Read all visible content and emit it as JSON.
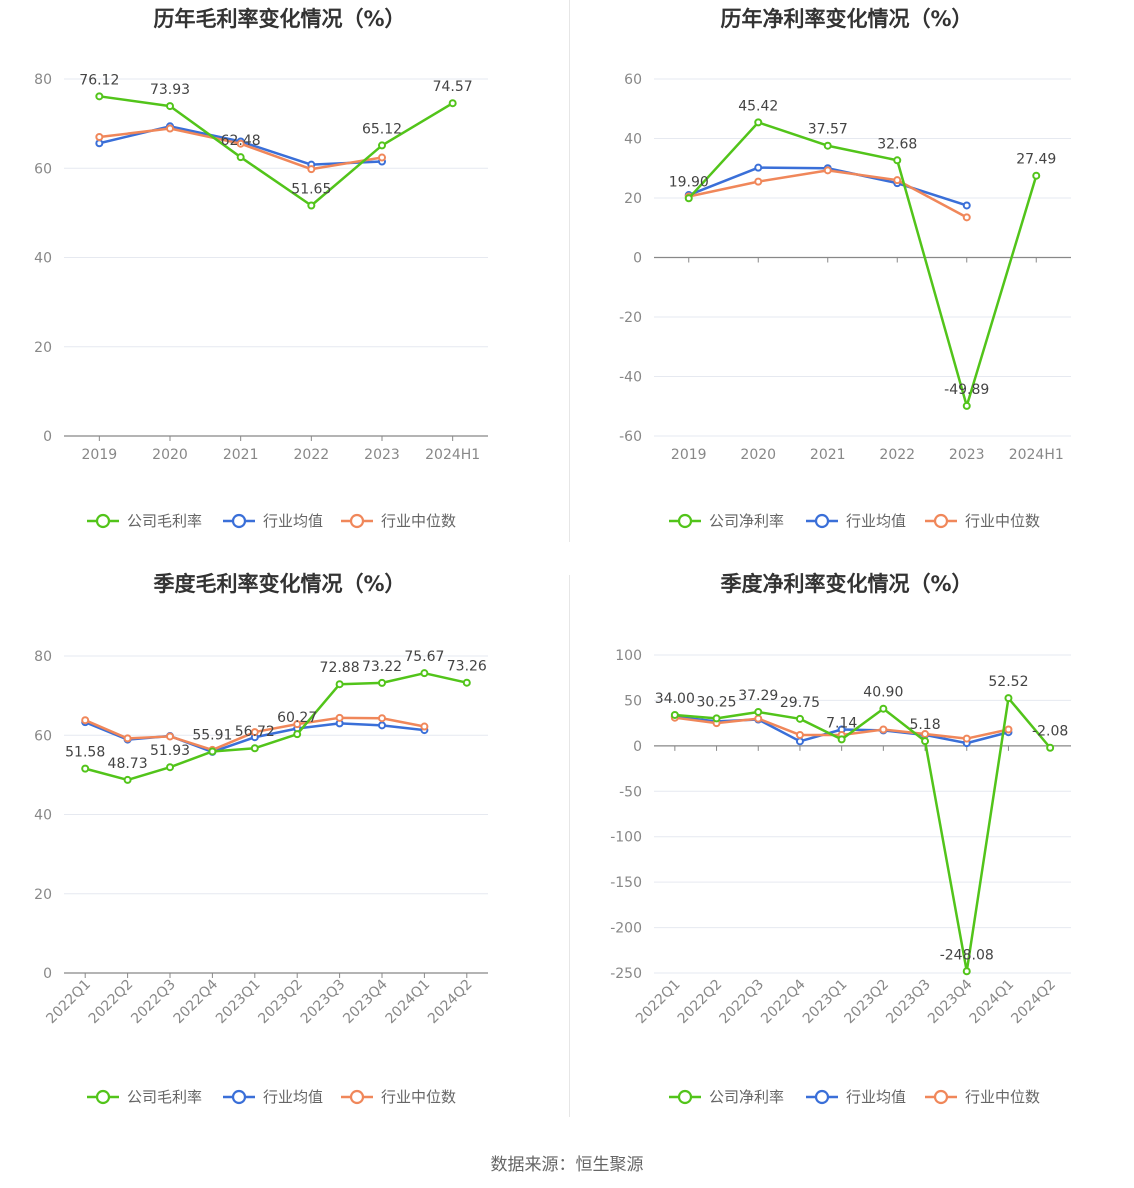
{
  "colors": {
    "company": "#52c41a",
    "avg": "#3a6fd8",
    "median": "#f0875a",
    "grid": "#e6e9f0",
    "axis": "#666666"
  },
  "source": "数据来源：恒生聚源",
  "chart_data": [
    {
      "type": "line",
      "title": "历年毛利率变化情况（%）",
      "categories": [
        "2019",
        "2020",
        "2021",
        "2022",
        "2023",
        "2024H1"
      ],
      "ylim": [
        0,
        80
      ],
      "yticks": [
        0,
        20,
        40,
        60,
        80
      ],
      "series": [
        {
          "name": "公司毛利率",
          "key": "company",
          "values": [
            76.12,
            73.93,
            62.48,
            51.65,
            65.12,
            74.57
          ],
          "labels": [
            "76.12",
            "73.93",
            "62.48",
            "51.65",
            "65.12",
            "74.57"
          ]
        },
        {
          "name": "行业均值",
          "key": "avg",
          "values": [
            65.6,
            69.4,
            66.0,
            60.8,
            61.5,
            null
          ]
        },
        {
          "name": "行业中位数",
          "key": "median",
          "values": [
            67.0,
            68.9,
            65.5,
            59.8,
            62.4,
            null
          ]
        }
      ]
    },
    {
      "type": "line",
      "title": "历年净利率变化情况（%）",
      "categories": [
        "2019",
        "2020",
        "2021",
        "2022",
        "2023",
        "2024H1"
      ],
      "ylim": [
        -60,
        60
      ],
      "yticks": [
        -60,
        -40,
        -20,
        0,
        20,
        40,
        60
      ],
      "series": [
        {
          "name": "公司净利率",
          "key": "company",
          "values": [
            19.9,
            45.42,
            37.57,
            32.68,
            -49.89,
            27.49
          ],
          "labels": [
            "19.90",
            "45.42",
            "37.57",
            "32.68",
            "-49.89",
            "27.49"
          ]
        },
        {
          "name": "行业均值",
          "key": "avg",
          "values": [
            21.0,
            30.2,
            30.0,
            25.0,
            17.5,
            null
          ]
        },
        {
          "name": "行业中位数",
          "key": "median",
          "values": [
            20.5,
            25.5,
            29.3,
            26.0,
            13.5,
            null
          ]
        }
      ]
    },
    {
      "type": "line",
      "title": "季度毛利率变化情况（%）",
      "categories": [
        "2022Q1",
        "2022Q2",
        "2022Q3",
        "2022Q4",
        "2023Q1",
        "2023Q2",
        "2023Q3",
        "2023Q4",
        "2024Q1",
        "2024Q2"
      ],
      "ylim": [
        0,
        80
      ],
      "yticks": [
        0,
        20,
        40,
        60,
        80
      ],
      "series": [
        {
          "name": "公司毛利率",
          "key": "company",
          "values": [
            51.58,
            48.73,
            51.93,
            55.91,
            56.72,
            60.27,
            72.88,
            73.22,
            75.67,
            73.26
          ],
          "labels": [
            "51.58",
            "48.73",
            "51.93",
            "55.91",
            "56.72",
            "60.27",
            "72.88",
            "73.22",
            "75.67",
            "73.26"
          ]
        },
        {
          "name": "行业均值",
          "key": "avg",
          "values": [
            63.3,
            58.9,
            59.8,
            55.8,
            59.5,
            61.7,
            63.0,
            62.5,
            61.3,
            null
          ]
        },
        {
          "name": "行业中位数",
          "key": "median",
          "values": [
            63.8,
            59.2,
            59.7,
            56.3,
            60.8,
            62.8,
            64.4,
            64.3,
            62.2,
            null
          ]
        }
      ]
    },
    {
      "type": "line",
      "title": "季度净利率变化情况（%）",
      "categories": [
        "2022Q1",
        "2022Q2",
        "2022Q3",
        "2022Q4",
        "2023Q1",
        "2023Q2",
        "2023Q3",
        "2023Q4",
        "2024Q1",
        "2024Q2"
      ],
      "ylim": [
        -250,
        100
      ],
      "yticks": [
        -250,
        -200,
        -150,
        -100,
        -50,
        0,
        50,
        100
      ],
      "series": [
        {
          "name": "公司净利率",
          "key": "company",
          "values": [
            34.0,
            30.25,
            37.29,
            29.75,
            7.14,
            40.9,
            5.18,
            -248.08,
            52.52,
            -2.08
          ],
          "labels": [
            "34.00",
            "30.25",
            "37.29",
            "29.75",
            "7.14",
            "40.90",
            "5.18",
            "-248.08",
            "52.52",
            "-2.08"
          ]
        },
        {
          "name": "行业均值",
          "key": "avg",
          "values": [
            32.0,
            27.0,
            29.0,
            5.0,
            18.0,
            17.0,
            12.0,
            3.0,
            15.0,
            null
          ]
        },
        {
          "name": "行业中位数",
          "key": "median",
          "values": [
            31.0,
            25.0,
            30.0,
            12.0,
            12.0,
            18.0,
            13.0,
            8.0,
            18.0,
            null
          ]
        }
      ]
    }
  ]
}
